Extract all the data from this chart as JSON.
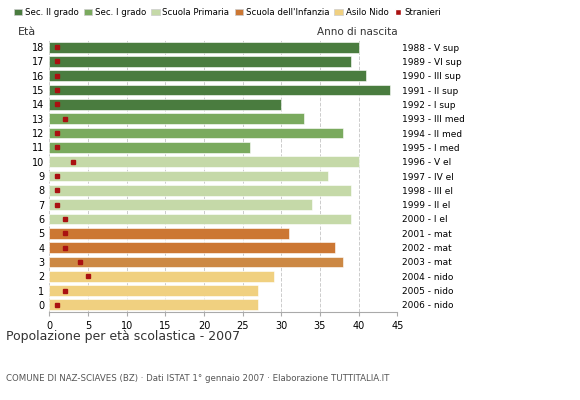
{
  "ages": [
    18,
    17,
    16,
    15,
    14,
    13,
    12,
    11,
    10,
    9,
    8,
    7,
    6,
    5,
    4,
    3,
    2,
    1,
    0
  ],
  "years": [
    "1988 - V sup",
    "1989 - VI sup",
    "1990 - III sup",
    "1991 - II sup",
    "1992 - I sup",
    "1993 - III med",
    "1994 - II med",
    "1995 - I med",
    "1996 - V el",
    "1997 - IV el",
    "1998 - III el",
    "1999 - II el",
    "2000 - I el",
    "2001 - mat",
    "2002 - mat",
    "2003 - mat",
    "2004 - nido",
    "2005 - nido",
    "2006 - nido"
  ],
  "bar_values": [
    40,
    39,
    41,
    44,
    30,
    33,
    38,
    26,
    40,
    36,
    39,
    34,
    39,
    31,
    37,
    38,
    29,
    27,
    27
  ],
  "stranieri": [
    1,
    1,
    1,
    1,
    1,
    2,
    1,
    1,
    3,
    1,
    1,
    1,
    2,
    2,
    2,
    4,
    5,
    2,
    1
  ],
  "bar_colors": [
    "#4a7c3f",
    "#4a7c3f",
    "#4a7c3f",
    "#4a7c3f",
    "#4a7c3f",
    "#7aaa5e",
    "#7aaa5e",
    "#7aaa5e",
    "#c5d9a8",
    "#c5d9a8",
    "#c5d9a8",
    "#c5d9a8",
    "#c5d9a8",
    "#cc7733",
    "#cc7733",
    "#cc8844",
    "#f0d080",
    "#f0d080",
    "#f0d080"
  ],
  "legend_labels": [
    "Sec. II grado",
    "Sec. I grado",
    "Scuola Primaria",
    "Scuola dell'Infanzia",
    "Asilo Nido",
    "Stranieri"
  ],
  "legend_colors": [
    "#4a7c3f",
    "#7aaa5e",
    "#c5d9a8",
    "#cc7733",
    "#f0d080",
    "#aa1111"
  ],
  "stranieri_color": "#aa1111",
  "title": "Popolazione per età scolastica - 2007",
  "subtitle": "COMUNE DI NAZ-SCIAVES (BZ) · Dati ISTAT 1° gennaio 2007 · Elaborazione TUTTITALIA.IT",
  "xlabel_eta": "Età",
  "xlabel_anno": "Anno di nascita",
  "xlim": [
    0,
    45
  ],
  "xticks": [
    0,
    5,
    10,
    15,
    20,
    25,
    30,
    35,
    40,
    45
  ],
  "bg_color": "#ffffff",
  "bar_height": 0.75,
  "grid_color": "#cccccc"
}
